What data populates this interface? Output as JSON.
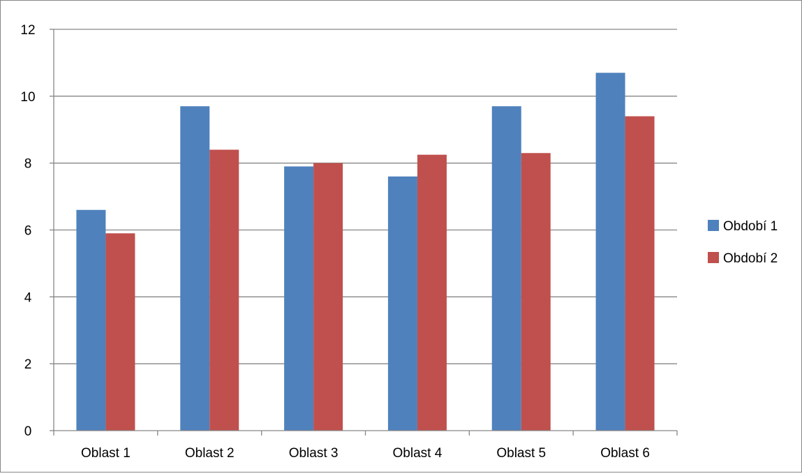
{
  "chart_data": {
    "type": "bar",
    "title": "",
    "xlabel": "",
    "ylabel": "",
    "categories": [
      "Oblast 1",
      "Oblast 2",
      "Oblast 3",
      "Oblast 4",
      "Oblast 5",
      "Oblast 6"
    ],
    "series": [
      {
        "name": "Období 1",
        "color": "#4F81BD",
        "values": [
          6.6,
          9.7,
          7.9,
          7.6,
          9.7,
          10.7
        ]
      },
      {
        "name": "Období 2",
        "color": "#C0504D",
        "values": [
          5.9,
          8.4,
          8.0,
          8.25,
          8.3,
          9.4
        ]
      }
    ],
    "ylim": [
      0,
      12
    ],
    "yticks": [
      "0",
      "2",
      "4",
      "6",
      "8",
      "10",
      "12"
    ],
    "grid": true,
    "legend_position": "right"
  }
}
